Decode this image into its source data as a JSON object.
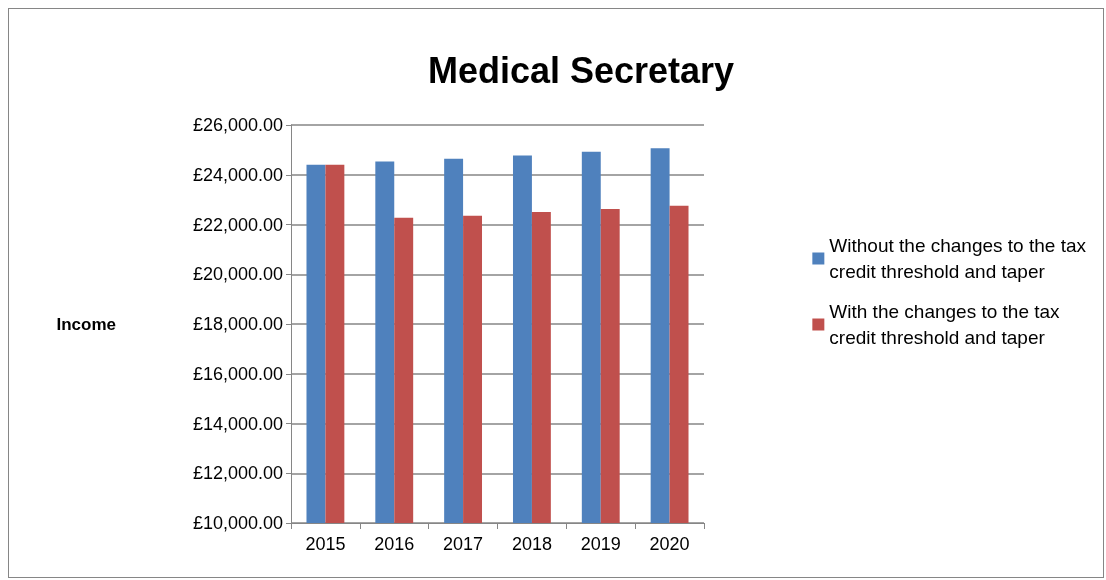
{
  "chart_data": {
    "type": "bar",
    "title": "Medical Secretary",
    "ylabel": "Income",
    "categories": [
      "2015",
      "2016",
      "2017",
      "2018",
      "2019",
      "2020"
    ],
    "series": [
      {
        "name": "Without the changes to the tax credit threshold and taper",
        "color": "#4f81bd",
        "values": [
          24400,
          24530,
          24640,
          24770,
          24920,
          25070
        ]
      },
      {
        "name": "With the changes to the tax credit threshold and taper",
        "color": "#c0504d",
        "values": [
          24400,
          22270,
          22350,
          22500,
          22620,
          22750
        ]
      }
    ],
    "ylim": [
      10000,
      26000
    ],
    "yticks": [
      {
        "value": 10000,
        "label": "£10,000.00"
      },
      {
        "value": 12000,
        "label": "£12,000.00"
      },
      {
        "value": 14000,
        "label": "£14,000.00"
      },
      {
        "value": 16000,
        "label": "£16,000.00"
      },
      {
        "value": 18000,
        "label": "£18,000.00"
      },
      {
        "value": 20000,
        "label": "£20,000.00"
      },
      {
        "value": 22000,
        "label": "£22,000.00"
      },
      {
        "value": 24000,
        "label": "£24,000.00"
      },
      {
        "value": 26000,
        "label": "£26,000.00"
      }
    ],
    "grid": "y",
    "legend": "right"
  }
}
